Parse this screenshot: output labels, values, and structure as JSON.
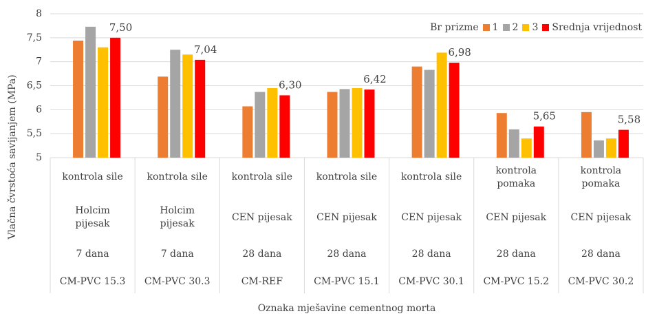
{
  "chart_data": {
    "type": "bar",
    "y_label": "Vlačna čvrstoća savijanjem (MPa)",
    "x_label": "Oznaka mješavine cementnog morta",
    "legend_title": "Br prizme",
    "legend_position": "upper right",
    "grid": true,
    "categories": [
      [
        "kontrola sile",
        "Holcim pijesak",
        "7 dana",
        "CM-PVC 15.3"
      ],
      [
        "kontrola sile",
        "Holcim pijesak",
        "7 dana",
        "CM-PVC 30.3"
      ],
      [
        "kontrola sile",
        "CEN pijesak",
        "28 dana",
        "CM-REF"
      ],
      [
        "kontrola sile",
        "CEN pijesak",
        "28 dana",
        "CM-PVC 15.1"
      ],
      [
        "kontrola sile",
        "CEN pijesak",
        "28 dana",
        "CM-PVC 30.1"
      ],
      [
        "kontrola pomaka",
        "CEN pijesak",
        "28 dana",
        "CM-PVC 15.2"
      ],
      [
        "kontrola pomaka",
        "CEN pijesak",
        "28 dana",
        "CM-PVC 30.2"
      ]
    ],
    "series": [
      {
        "name": "1",
        "color": "#ED7D31",
        "values": [
          7.44,
          6.69,
          6.07,
          6.37,
          6.9,
          5.93,
          5.95
        ]
      },
      {
        "name": "2",
        "color": "#A5A5A5",
        "values": [
          7.73,
          7.25,
          6.37,
          6.43,
          6.83,
          5.59,
          5.36
        ]
      },
      {
        "name": "3",
        "color": "#FFC000",
        "values": [
          7.3,
          7.15,
          6.45,
          6.45,
          7.19,
          5.4,
          5.4
        ]
      },
      {
        "name": "Srednja vrijednost",
        "color": "#FF0000",
        "values": [
          7.5,
          7.04,
          6.3,
          6.42,
          6.98,
          5.65,
          5.58
        ],
        "value_labels": [
          "7,50",
          "7,04",
          "6,30",
          "6,42",
          "6,98",
          "5,65",
          "5,58"
        ]
      }
    ],
    "ylim": [
      5,
      8
    ],
    "yticks": [
      5,
      {
        "value": 5.5,
        "label": "5,5"
      },
      6,
      {
        "value": 6.5,
        "label": "6,5"
      },
      7,
      {
        "value": 7.5,
        "label": "7,5"
      },
      8
    ]
  }
}
